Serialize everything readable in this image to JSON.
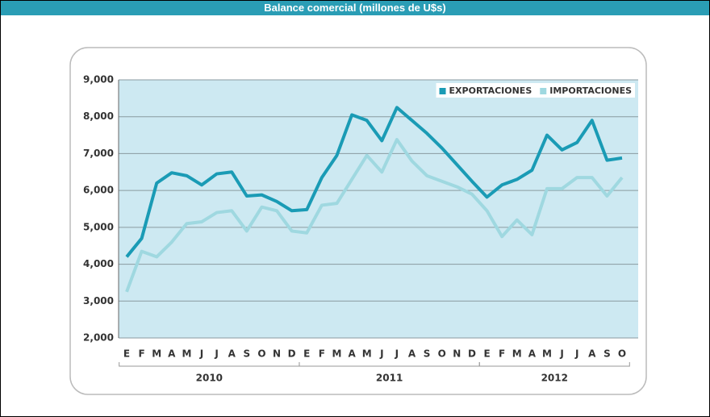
{
  "chart_data": {
    "type": "line",
    "title": "Balance comercial (millones de U$s)",
    "groups": [
      {
        "label": "2010",
        "categories": [
          "E",
          "F",
          "M",
          "A",
          "M",
          "J",
          "J",
          "A",
          "S",
          "O",
          "N",
          "D"
        ]
      },
      {
        "label": "2011",
        "categories": [
          "E",
          "F",
          "M",
          "A",
          "M",
          "J",
          "J",
          "A",
          "S",
          "O",
          "N",
          "D"
        ]
      },
      {
        "label": "2012",
        "categories": [
          "E",
          "F",
          "M",
          "A",
          "M",
          "J",
          "J",
          "A",
          "S",
          "O"
        ]
      }
    ],
    "series": [
      {
        "name": "EXPORTACIONES",
        "color": "#1a9bb5",
        "values": [
          4200,
          4700,
          6200,
          6480,
          6400,
          6150,
          6450,
          6500,
          5850,
          5880,
          5700,
          5450,
          5480,
          6350,
          6950,
          8050,
          7900,
          7350,
          8250,
          7900,
          7550,
          7150,
          6700,
          6250,
          5820,
          6150,
          6300,
          6550,
          7500,
          7100,
          7300,
          7900,
          6820,
          6880
        ]
      },
      {
        "name": "IMPORTACIONES",
        "color": "#9fd8e0",
        "values": [
          3250,
          4350,
          4200,
          4600,
          5100,
          5150,
          5400,
          5450,
          4900,
          5550,
          5450,
          4900,
          4850,
          5600,
          5650,
          6300,
          6950,
          6500,
          7380,
          6800,
          6400,
          6250,
          6100,
          5900,
          5450,
          4750,
          5200,
          4800,
          6050,
          6050,
          6350,
          6350,
          5850,
          6350
        ]
      }
    ],
    "ylim": [
      2000,
      9000
    ],
    "yticks": [
      {
        "value": 2000,
        "label": "2,000"
      },
      {
        "value": 3000,
        "label": "3,000"
      },
      {
        "value": 4000,
        "label": "4,000"
      },
      {
        "value": 5000,
        "label": "5,000"
      },
      {
        "value": 6000,
        "label": "6,000"
      },
      {
        "value": 7000,
        "label": "7,000"
      },
      {
        "value": 8000,
        "label": "8,000"
      },
      {
        "value": 9000,
        "label": "9,000"
      }
    ],
    "grid": true,
    "legend": "top-right"
  }
}
